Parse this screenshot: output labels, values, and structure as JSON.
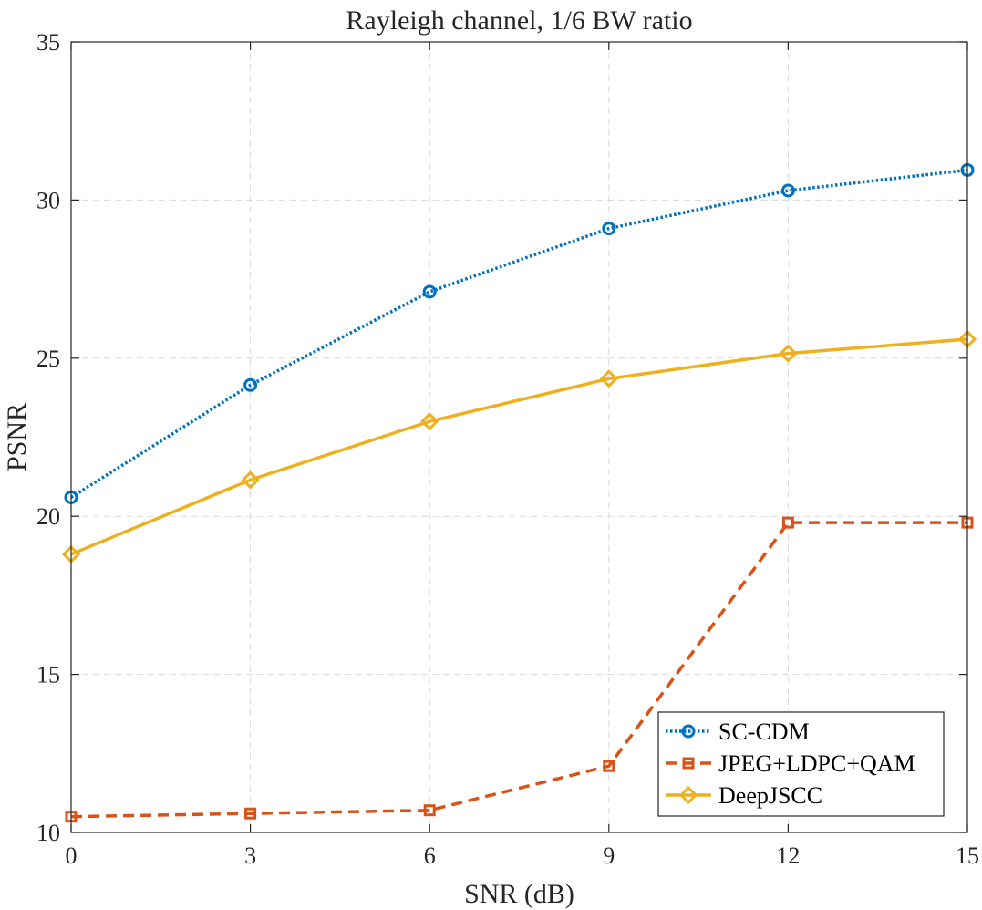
{
  "chart_data": {
    "type": "line",
    "title": "Rayleigh channel, 1/6 BW ratio",
    "xlabel": "SNR (dB)",
    "ylabel": "PSNR",
    "xlim": [
      0,
      15
    ],
    "ylim": [
      10,
      35
    ],
    "xticks": [
      0,
      3,
      6,
      9,
      12,
      15
    ],
    "yticks": [
      10,
      15,
      20,
      25,
      30,
      35
    ],
    "grid": true,
    "legend_position": "bottom-right",
    "x": [
      0,
      3,
      6,
      9,
      12,
      15
    ],
    "series": [
      {
        "name": "SC-CDM",
        "values": [
          20.6,
          24.15,
          27.1,
          29.1,
          30.3,
          30.95
        ],
        "color": "#0072BD",
        "marker": "circle",
        "dash": "dotted"
      },
      {
        "name": "JPEG+LDPC+QAM",
        "values": [
          10.5,
          10.6,
          10.7,
          12.1,
          19.8,
          19.8
        ],
        "color": "#D95319",
        "marker": "square",
        "dash": "dashed"
      },
      {
        "name": "DeepJSCC",
        "values": [
          18.8,
          21.15,
          23.0,
          24.35,
          25.15,
          25.6
        ],
        "color": "#EDB120",
        "marker": "diamond",
        "dash": "solid"
      }
    ]
  }
}
